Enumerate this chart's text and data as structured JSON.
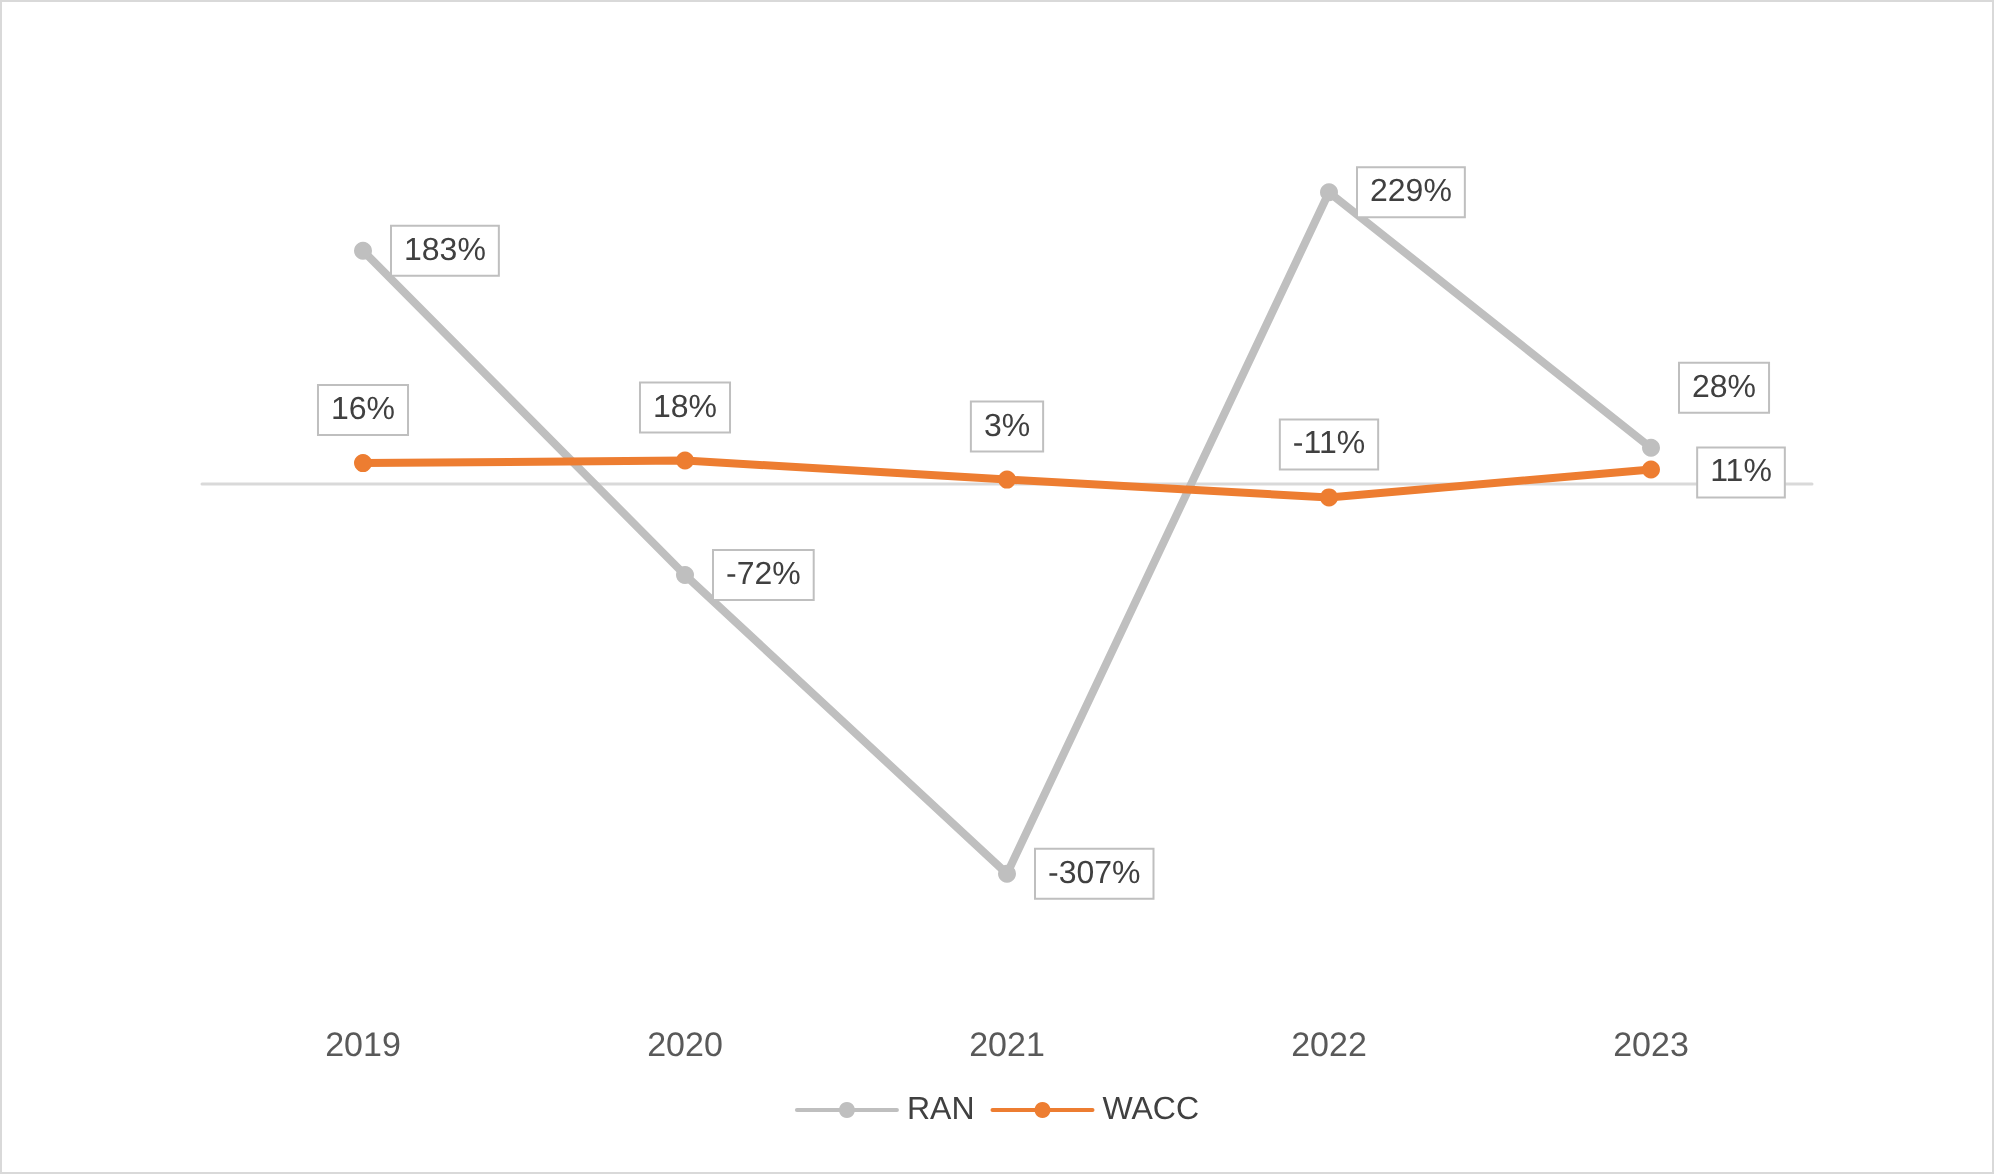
{
  "chart_data": {
    "type": "line",
    "categories": [
      "2019",
      "2020",
      "2021",
      "2022",
      "2023"
    ],
    "series": [
      {
        "name": "RAN",
        "color": "#bfbfbf",
        "values": [
          183,
          -72,
          -307,
          229,
          28
        ],
        "value_labels": [
          "183%",
          "-72%",
          "-307%",
          "229%",
          "28%"
        ]
      },
      {
        "name": "WACC",
        "color": "#ed7d31",
        "values": [
          16,
          18,
          3,
          -11,
          11
        ],
        "value_labels": [
          "16%",
          "18%",
          "3%",
          "-11%",
          "11%"
        ]
      }
    ],
    "legend": "bottom",
    "grid": false,
    "marker": "circle",
    "line_style": "solid"
  }
}
